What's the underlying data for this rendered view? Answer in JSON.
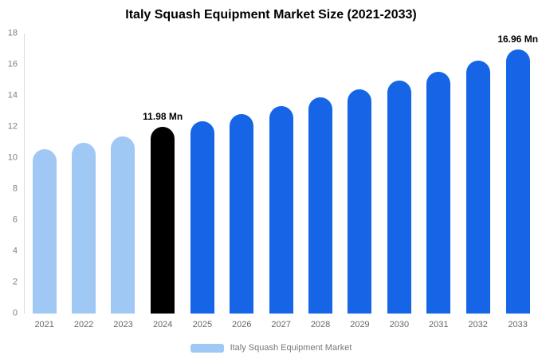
{
  "chart_data": {
    "type": "bar",
    "title": "Italy Squash Equipment Market Size (2021-2033)",
    "categories": [
      "2021",
      "2022",
      "2023",
      "2024",
      "2025",
      "2026",
      "2027",
      "2028",
      "2029",
      "2030",
      "2031",
      "2032",
      "2033"
    ],
    "values": [
      10.55,
      11.0,
      11.4,
      11.98,
      12.35,
      12.8,
      13.35,
      13.9,
      14.4,
      15.0,
      15.55,
      16.25,
      16.96
    ],
    "bar_value_labels": [
      "",
      "",
      "",
      "11.98 Mn",
      "",
      "",
      "",
      "",
      "",
      "",
      "",
      "",
      "16.96 Mn"
    ],
    "bar_colors": [
      "#A0C8F5",
      "#A0C8F5",
      "#A0C8F5",
      "#000000",
      "#1565E6",
      "#1565E6",
      "#1565E6",
      "#1565E6",
      "#1565E6",
      "#1565E6",
      "#1565E6",
      "#1565E6",
      "#1565E6"
    ],
    "xlabel": "",
    "ylabel": "",
    "ylim": [
      0,
      18
    ],
    "yticks": [
      0,
      2,
      4,
      6,
      8,
      10,
      12,
      14,
      16,
      18
    ],
    "grid": false,
    "legend": {
      "label": "Italy Squash Equipment Market",
      "swatch_color": "#A0C8F5",
      "position": "bottom"
    }
  },
  "colors": {
    "historic_bar": "#A0C8F5",
    "base_year_bar": "#000000",
    "forecast_bar": "#1565E6",
    "axis_text": "#7f7f7f",
    "background": "#ffffff"
  }
}
